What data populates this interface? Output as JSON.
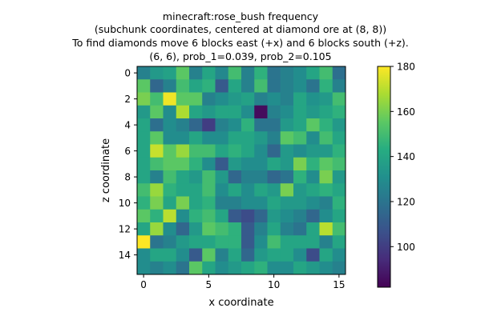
{
  "chart_data": {
    "type": "heatmap",
    "title_lines": [
      "minecraft:rose_bush frequency",
      "(subchunk coordinates, centered at diamond ore at (8, 8))",
      "To find diamonds move 6 blocks east (+x) and 6 blocks south (+z).",
      "(6, 6), prob_1=0.039, prob_2=0.105"
    ],
    "xlabel": "x coordinate",
    "ylabel": "z coordinate",
    "x_ticks": [
      0,
      5,
      10,
      15
    ],
    "y_ticks": [
      0,
      2,
      4,
      6,
      8,
      10,
      12,
      14
    ],
    "colorbar": {
      "min": 82,
      "max": 180,
      "ticks": [
        100,
        120,
        140,
        160,
        180
      ],
      "colormap": "viridis"
    },
    "grid": false,
    "values": [
      [
        125,
        135,
        138,
        155,
        125,
        140,
        128,
        150,
        125,
        145,
        120,
        125,
        130,
        140,
        150,
        118
      ],
      [
        155,
        115,
        125,
        150,
        140,
        145,
        110,
        140,
        125,
        150,
        120,
        125,
        130,
        120,
        145,
        125
      ],
      [
        160,
        150,
        178,
        155,
        155,
        125,
        130,
        135,
        138,
        125,
        130,
        125,
        140,
        132,
        135,
        150
      ],
      [
        135,
        155,
        130,
        168,
        140,
        135,
        140,
        140,
        130,
        85,
        125,
        130,
        140,
        135,
        140,
        145
      ],
      [
        140,
        118,
        130,
        125,
        115,
        100,
        125,
        130,
        145,
        120,
        120,
        135,
        140,
        155,
        145,
        135
      ],
      [
        140,
        155,
        130,
        130,
        140,
        130,
        130,
        140,
        140,
        135,
        125,
        155,
        150,
        130,
        150,
        140
      ],
      [
        140,
        172,
        155,
        165,
        150,
        150,
        140,
        145,
        140,
        130,
        115,
        135,
        130,
        135,
        135,
        145
      ],
      [
        140,
        150,
        155,
        155,
        145,
        130,
        110,
        135,
        130,
        130,
        140,
        135,
        160,
        145,
        155,
        150
      ],
      [
        140,
        125,
        150,
        140,
        135,
        150,
        135,
        115,
        125,
        125,
        115,
        120,
        145,
        130,
        160,
        135
      ],
      [
        150,
        165,
        145,
        140,
        140,
        150,
        130,
        140,
        130,
        140,
        135,
        160,
        135,
        140,
        145,
        140
      ],
      [
        145,
        160,
        140,
        160,
        140,
        145,
        125,
        125,
        130,
        130,
        140,
        135,
        135,
        130,
        125,
        145
      ],
      [
        155,
        145,
        170,
        130,
        145,
        150,
        140,
        110,
        105,
        115,
        135,
        130,
        125,
        115,
        130,
        140
      ],
      [
        140,
        165,
        130,
        115,
        135,
        155,
        150,
        145,
        110,
        125,
        140,
        125,
        120,
        140,
        170,
        150
      ],
      [
        180,
        120,
        125,
        135,
        140,
        140,
        145,
        145,
        110,
        130,
        150,
        140,
        140,
        140,
        125,
        140
      ],
      [
        130,
        140,
        140,
        130,
        110,
        155,
        125,
        140,
        115,
        135,
        140,
        140,
        130,
        105,
        140,
        130
      ],
      [
        130,
        125,
        130,
        120,
        155,
        140,
        130,
        135,
        140,
        145,
        130,
        130,
        140,
        135,
        130,
        125
      ]
    ]
  }
}
